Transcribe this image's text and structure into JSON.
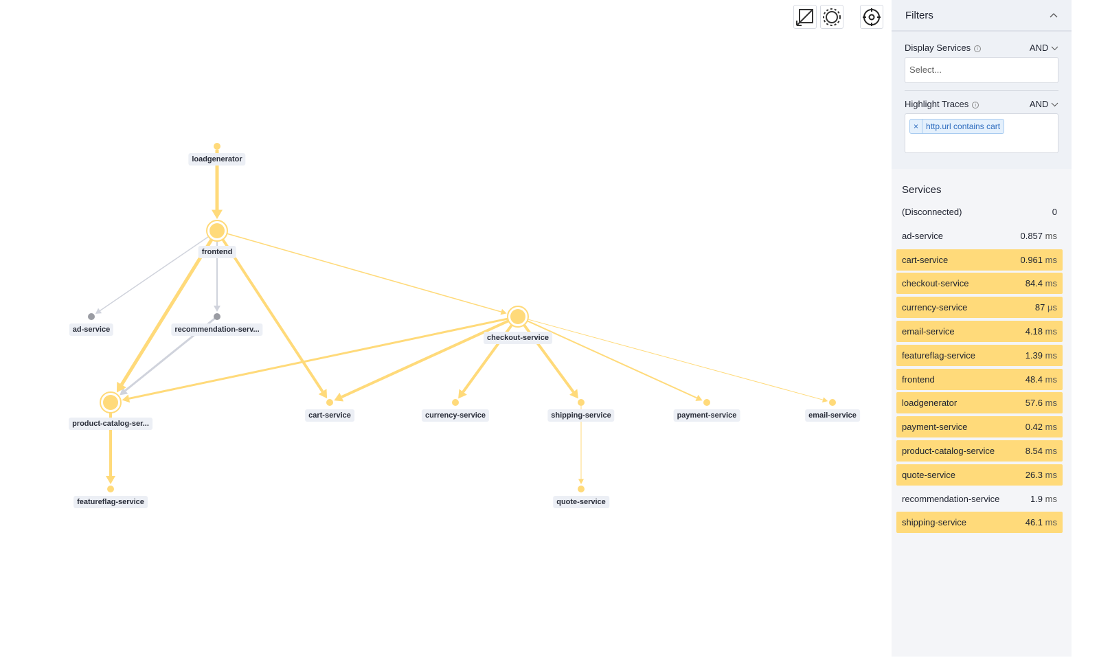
{
  "toolbar": {
    "buttons": [
      {
        "name": "fit-view-icon"
      },
      {
        "name": "layout-circle-icon"
      },
      {
        "name": "recenter-icon"
      }
    ]
  },
  "colors": {
    "highlight": "#ffda7a",
    "muted": "#9a9ca3",
    "edge_muted": "#d0d3dc"
  },
  "graph": {
    "nodes": [
      {
        "id": "loadgenerator",
        "label": "loadgenerator",
        "highlighted": true
      },
      {
        "id": "frontend",
        "label": "frontend",
        "highlighted": true,
        "major": true
      },
      {
        "id": "ad",
        "label": "ad-service",
        "highlighted": false
      },
      {
        "id": "rec",
        "label": "recommendation-serv...",
        "highlighted": false
      },
      {
        "id": "checkout",
        "label": "checkout-service",
        "highlighted": true,
        "major": true
      },
      {
        "id": "pc",
        "label": "product-catalog-ser...",
        "highlighted": true,
        "major": true
      },
      {
        "id": "cart",
        "label": "cart-service",
        "highlighted": true
      },
      {
        "id": "currency",
        "label": "currency-service",
        "highlighted": true
      },
      {
        "id": "shipping",
        "label": "shipping-service",
        "highlighted": true
      },
      {
        "id": "payment",
        "label": "payment-service",
        "highlighted": true
      },
      {
        "id": "email",
        "label": "email-service",
        "highlighted": true
      },
      {
        "id": "ff",
        "label": "featureflag-service",
        "highlighted": true
      },
      {
        "id": "quote",
        "label": "quote-service",
        "highlighted": true
      }
    ],
    "edges": [
      {
        "from": "loadgenerator",
        "to": "frontend",
        "highlighted": true
      },
      {
        "from": "frontend",
        "to": "ad",
        "highlighted": false
      },
      {
        "from": "frontend",
        "to": "rec",
        "highlighted": false
      },
      {
        "from": "rec",
        "to": "pc",
        "highlighted": false
      },
      {
        "from": "frontend",
        "to": "pc",
        "highlighted": true
      },
      {
        "from": "frontend",
        "to": "cart",
        "highlighted": true
      },
      {
        "from": "frontend",
        "to": "checkout",
        "highlighted": true
      },
      {
        "from": "checkout",
        "to": "pc",
        "highlighted": true
      },
      {
        "from": "checkout",
        "to": "cart",
        "highlighted": true
      },
      {
        "from": "checkout",
        "to": "currency",
        "highlighted": true
      },
      {
        "from": "checkout",
        "to": "shipping",
        "highlighted": true
      },
      {
        "from": "checkout",
        "to": "payment",
        "highlighted": true
      },
      {
        "from": "checkout",
        "to": "email",
        "highlighted": true
      },
      {
        "from": "pc",
        "to": "ff",
        "highlighted": true
      },
      {
        "from": "shipping",
        "to": "quote",
        "highlighted": true
      }
    ]
  },
  "filters": {
    "title": "Filters",
    "display_services": {
      "label": "Display Services",
      "operator": "AND",
      "placeholder": "Select..."
    },
    "highlight_traces": {
      "label": "Highlight Traces",
      "operator": "AND",
      "tags": [
        "http.url contains cart"
      ]
    }
  },
  "services": {
    "title": "Services",
    "items": [
      {
        "name": "(Disconnected)",
        "value": "0",
        "highlighted": false
      },
      {
        "name": "ad-service",
        "value": "0.857",
        "unit": "ms",
        "highlighted": false
      },
      {
        "name": "cart-service",
        "value": "0.961",
        "unit": "ms",
        "highlighted": true
      },
      {
        "name": "checkout-service",
        "value": "84.4",
        "unit": "ms",
        "highlighted": true
      },
      {
        "name": "currency-service",
        "value": "87",
        "unit": "μs",
        "highlighted": true
      },
      {
        "name": "email-service",
        "value": "4.18",
        "unit": "ms",
        "highlighted": true
      },
      {
        "name": "featureflag-service",
        "value": "1.39",
        "unit": "ms",
        "highlighted": true
      },
      {
        "name": "frontend",
        "value": "48.4",
        "unit": "ms",
        "highlighted": true
      },
      {
        "name": "loadgenerator",
        "value": "57.6",
        "unit": "ms",
        "highlighted": true
      },
      {
        "name": "payment-service",
        "value": "0.42",
        "unit": "ms",
        "highlighted": true
      },
      {
        "name": "product-catalog-service",
        "value": "8.54",
        "unit": "ms",
        "highlighted": true
      },
      {
        "name": "quote-service",
        "value": "26.3",
        "unit": "ms",
        "highlighted": true
      },
      {
        "name": "recommendation-service",
        "value": "1.9",
        "unit": "ms",
        "highlighted": false
      },
      {
        "name": "shipping-service",
        "value": "46.1",
        "unit": "ms",
        "highlighted": true
      }
    ]
  }
}
